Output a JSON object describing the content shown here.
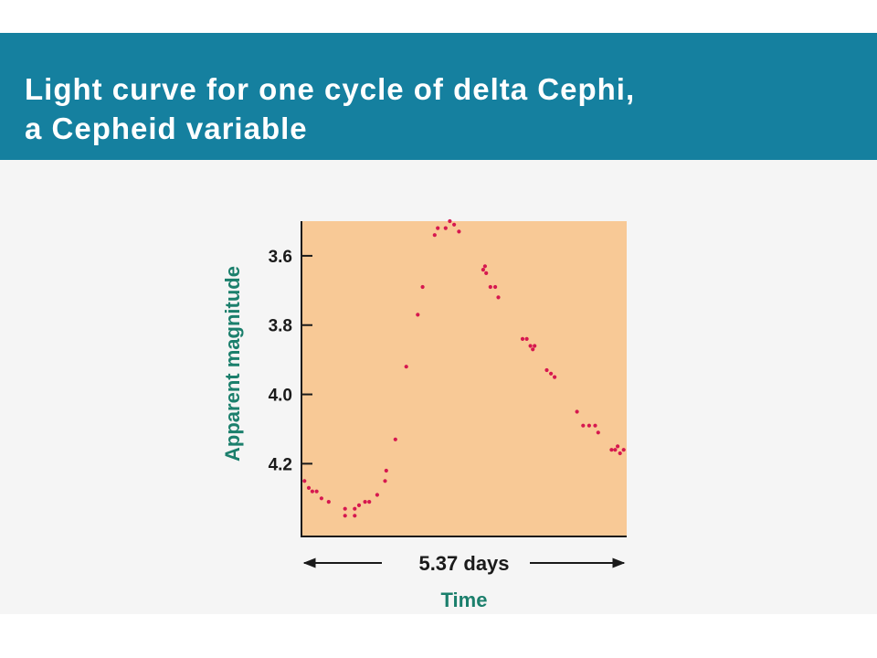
{
  "header": {
    "title_line1": "Light curve for one cycle of delta Cephi,",
    "title_line2": "a Cepheid variable"
  },
  "colors": {
    "banner": "#15809f",
    "plot_background": "#f8c996",
    "data_point": "#d6184f",
    "axis_title": "#1b7f6c",
    "page_background": "#f5f5f5"
  },
  "chart_data": {
    "type": "scatter",
    "title": "Light curve for one cycle of delta Cephi, a Cepheid variable",
    "xlabel": "Time",
    "ylabel": "Apparent magnitude",
    "x_span_label": "5.37 days",
    "x_unit": "days",
    "xlim": [
      0,
      5.37
    ],
    "ylim": [
      4.41,
      3.5
    ],
    "y_inverted": true,
    "yticks": [
      3.6,
      3.8,
      4.0,
      4.2
    ],
    "ytick_labels": [
      "3.6",
      "3.8",
      "4.0",
      "4.2"
    ],
    "grid": false,
    "legend": "none",
    "series": [
      {
        "points": [
          {
            "x": 0.05,
            "y": 4.25
          },
          {
            "x": 0.12,
            "y": 4.27
          },
          {
            "x": 0.18,
            "y": 4.28
          },
          {
            "x": 0.25,
            "y": 4.28
          },
          {
            "x": 0.33,
            "y": 4.3
          },
          {
            "x": 0.45,
            "y": 4.31
          },
          {
            "x": 0.72,
            "y": 4.33
          },
          {
            "x": 0.72,
            "y": 4.35
          },
          {
            "x": 0.88,
            "y": 4.33
          },
          {
            "x": 0.95,
            "y": 4.32
          },
          {
            "x": 0.88,
            "y": 4.35
          },
          {
            "x": 1.05,
            "y": 4.31
          },
          {
            "x": 1.12,
            "y": 4.31
          },
          {
            "x": 1.25,
            "y": 4.29
          },
          {
            "x": 1.38,
            "y": 4.25
          },
          {
            "x": 1.4,
            "y": 4.22
          },
          {
            "x": 1.55,
            "y": 4.13
          },
          {
            "x": 1.73,
            "y": 3.92
          },
          {
            "x": 1.92,
            "y": 3.77
          },
          {
            "x": 2.0,
            "y": 3.69
          },
          {
            "x": 2.2,
            "y": 3.54
          },
          {
            "x": 2.25,
            "y": 3.52
          },
          {
            "x": 2.38,
            "y": 3.52
          },
          {
            "x": 2.45,
            "y": 3.5
          },
          {
            "x": 2.52,
            "y": 3.51
          },
          {
            "x": 2.6,
            "y": 3.53
          },
          {
            "x": 3.0,
            "y": 3.64
          },
          {
            "x": 3.03,
            "y": 3.63
          },
          {
            "x": 3.05,
            "y": 3.65
          },
          {
            "x": 3.12,
            "y": 3.69
          },
          {
            "x": 3.2,
            "y": 3.69
          },
          {
            "x": 3.25,
            "y": 3.72
          },
          {
            "x": 3.65,
            "y": 3.84
          },
          {
            "x": 3.72,
            "y": 3.84
          },
          {
            "x": 3.78,
            "y": 3.86
          },
          {
            "x": 3.82,
            "y": 3.87
          },
          {
            "x": 3.85,
            "y": 3.86
          },
          {
            "x": 4.05,
            "y": 3.93
          },
          {
            "x": 4.12,
            "y": 3.94
          },
          {
            "x": 4.18,
            "y": 3.95
          },
          {
            "x": 4.55,
            "y": 4.05
          },
          {
            "x": 4.65,
            "y": 4.09
          },
          {
            "x": 4.75,
            "y": 4.09
          },
          {
            "x": 4.85,
            "y": 4.09
          },
          {
            "x": 4.9,
            "y": 4.11
          },
          {
            "x": 5.12,
            "y": 4.16
          },
          {
            "x": 5.18,
            "y": 4.16
          },
          {
            "x": 5.22,
            "y": 4.15
          },
          {
            "x": 5.26,
            "y": 4.17
          },
          {
            "x": 5.32,
            "y": 4.16
          }
        ]
      }
    ]
  }
}
